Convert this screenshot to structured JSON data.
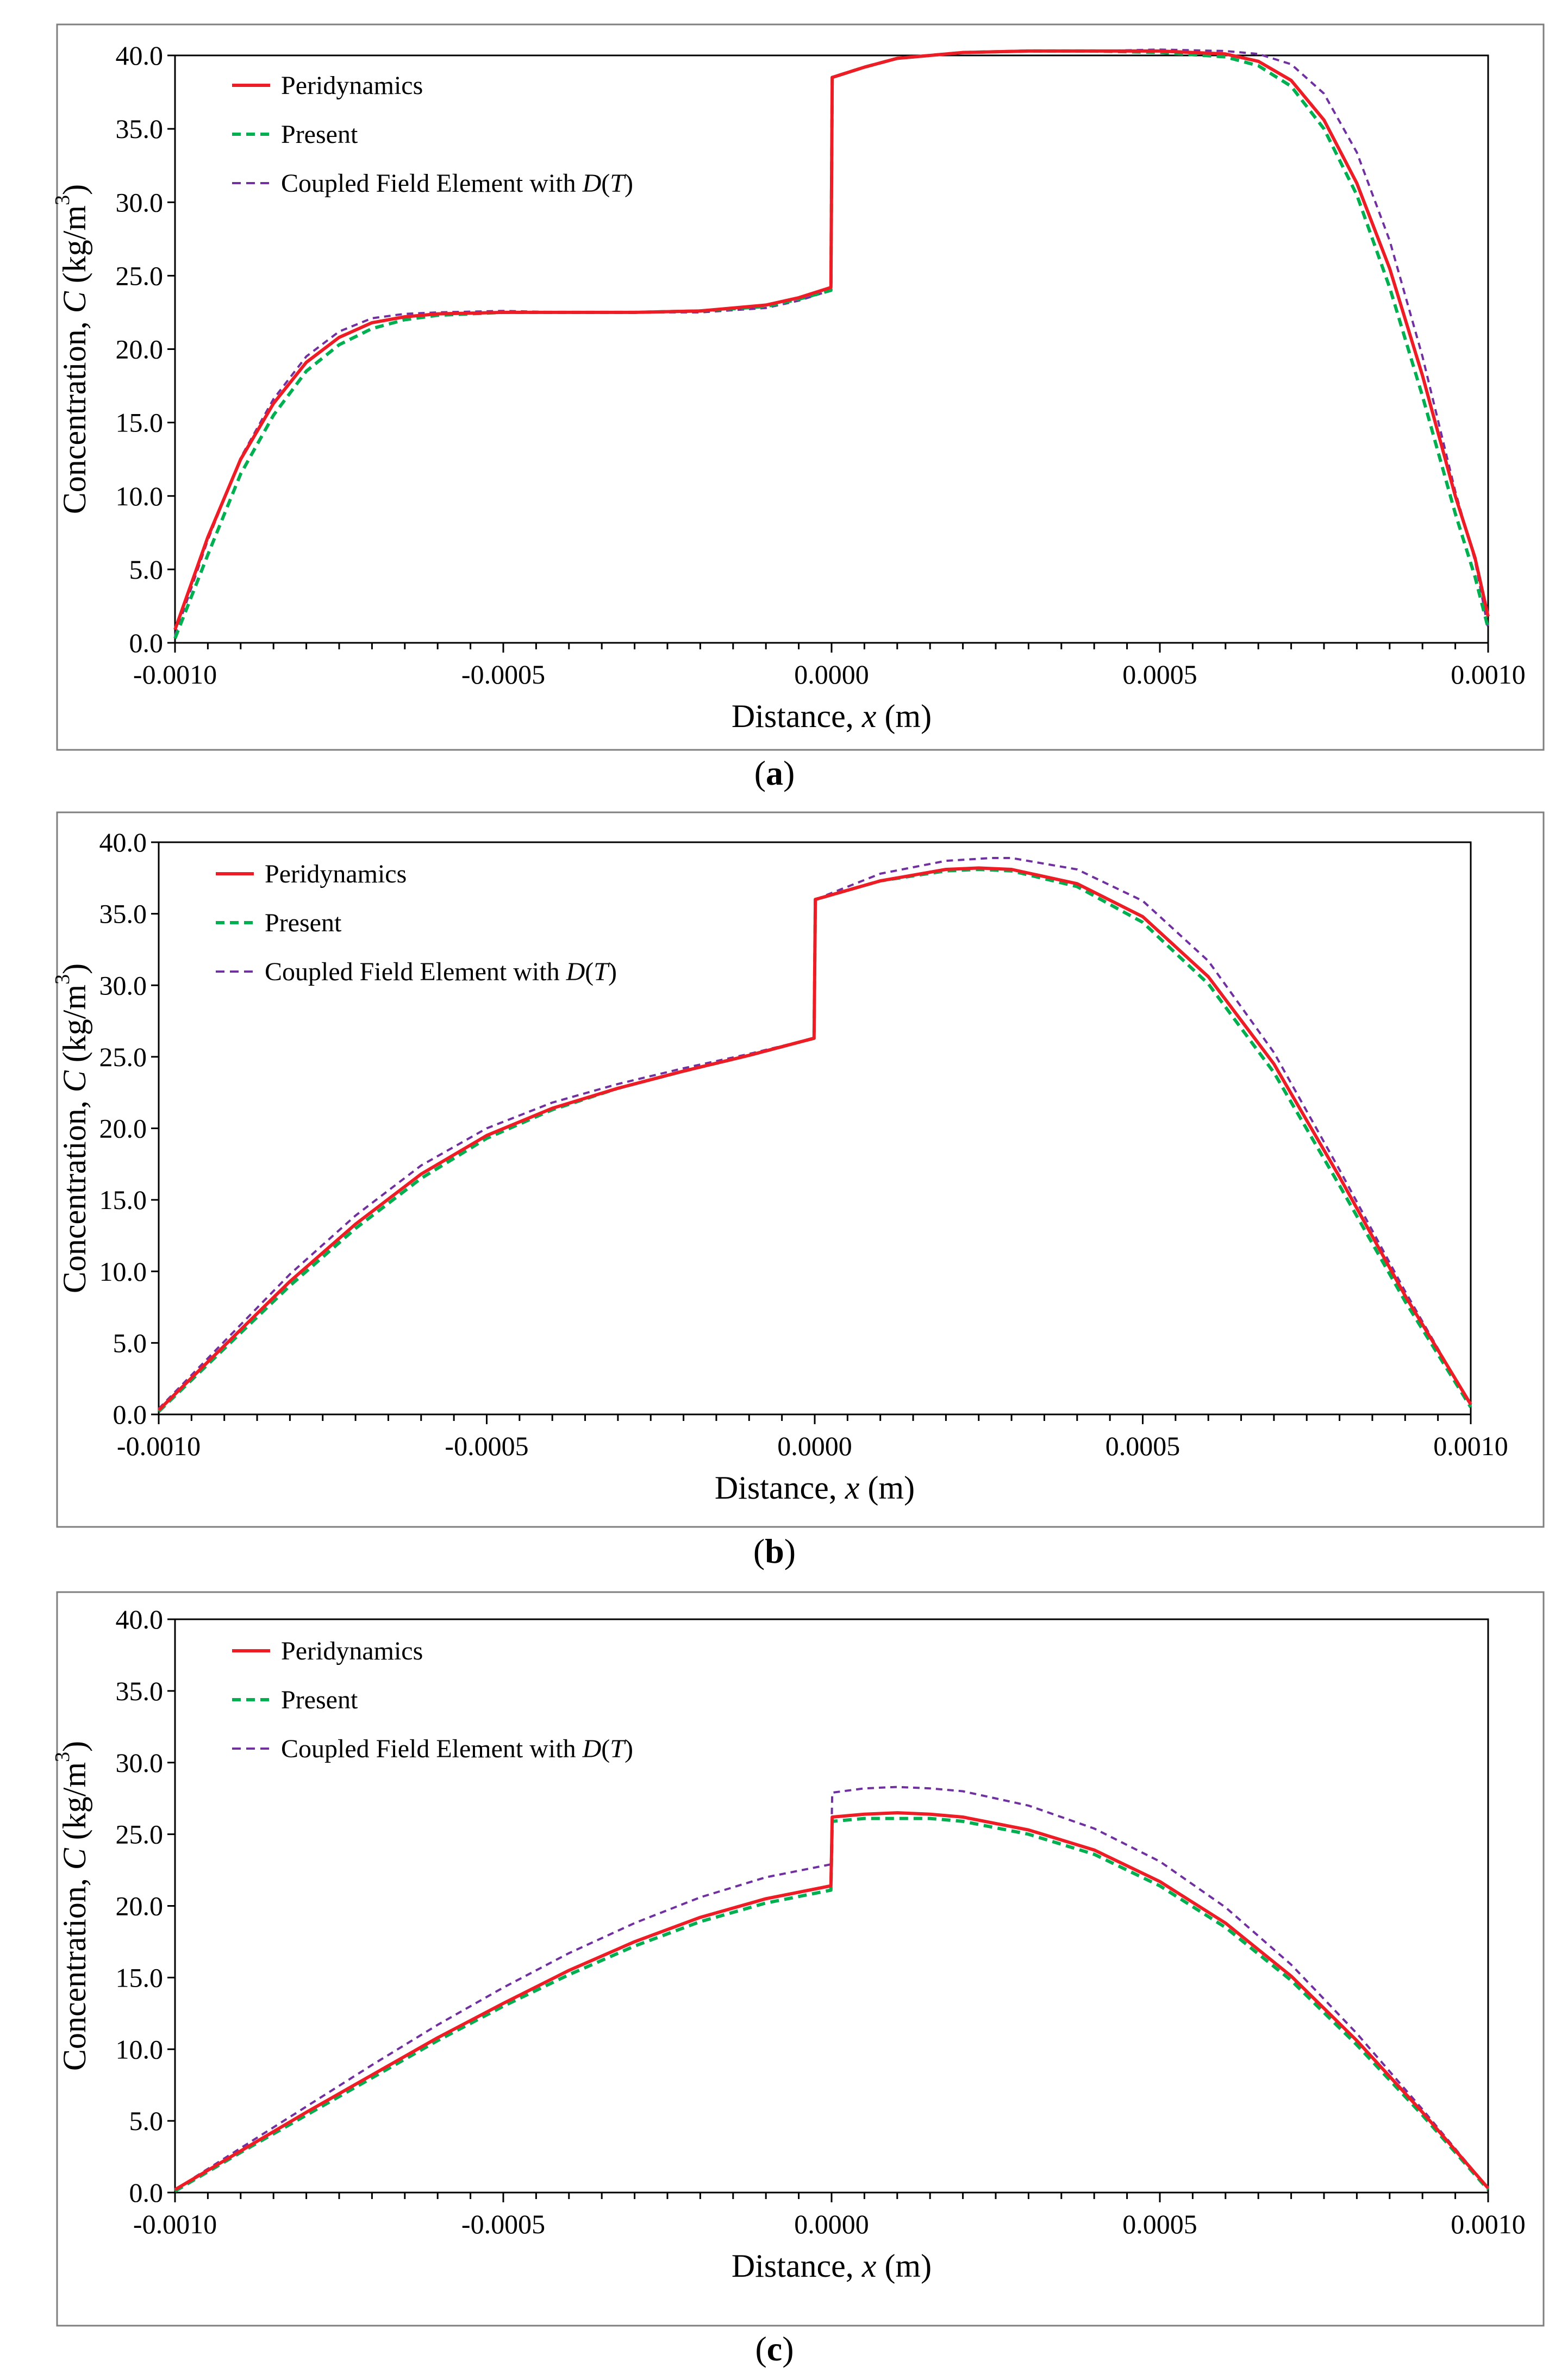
{
  "figure": {
    "panels": [
      {
        "label_open": "(",
        "label_letter": "a",
        "label_close": ")"
      },
      {
        "label_open": "(",
        "label_letter": "b",
        "label_close": ")"
      },
      {
        "label_open": "(",
        "label_letter": "c",
        "label_close": ")"
      }
    ]
  },
  "colors": {
    "peridynamics": "#ee1c25",
    "present": "#00b050",
    "coupled": "#7030a0",
    "axis": "#000000",
    "frame": "#7f7f7f"
  },
  "chart_data": [
    {
      "type": "line",
      "panel": "a",
      "xlabel": "Distance, x (m)",
      "ylabel": "Concentration, C (kg/m3)",
      "xlim": [
        -0.001,
        0.001
      ],
      "ylim": [
        0,
        40
      ],
      "xticks": [
        "-0.0010",
        "-0.0005",
        "0.0000",
        "0.0005",
        "0.0010"
      ],
      "yticks": [
        "0.0",
        "5.0",
        "10.0",
        "15.0",
        "20.0",
        "25.0",
        "30.0",
        "35.0",
        "40.0"
      ],
      "legend_position": "top-left",
      "series": [
        {
          "name": "Peridynamics",
          "style": "solid",
          "color_key": "peridynamics",
          "x": [
            -0.001,
            -0.00095,
            -0.0009,
            -0.00085,
            -0.0008,
            -0.00075,
            -0.0007,
            -0.00065,
            -0.0006,
            -0.0005,
            -0.0004,
            -0.0003,
            -0.0002,
            -0.0001,
            -5e-05,
            -1e-06,
            1e-06,
            5e-05,
            0.0001,
            0.0002,
            0.0003,
            0.0004,
            0.0005,
            0.0006,
            0.00065,
            0.0007,
            0.00075,
            0.0008,
            0.00085,
            0.0009,
            0.00095,
            0.00098,
            0.001
          ],
          "y": [
            0.9,
            7.2,
            12.5,
            16.3,
            19.1,
            20.8,
            21.8,
            22.2,
            22.4,
            22.5,
            22.5,
            22.5,
            22.6,
            23.0,
            23.5,
            24.2,
            38.5,
            39.2,
            39.8,
            40.2,
            40.3,
            40.3,
            40.3,
            40.1,
            39.6,
            38.3,
            35.6,
            31.3,
            25.5,
            18.2,
            10.0,
            5.8,
            1.8
          ]
        },
        {
          "name": "Present",
          "style": "dashed",
          "color_key": "present",
          "x": [
            -0.001,
            -0.00095,
            -0.0009,
            -0.00085,
            -0.0008,
            -0.00075,
            -0.0007,
            -0.00065,
            -0.0006,
            -0.0005,
            -0.0004,
            -0.0003,
            -0.0002,
            -0.0001,
            -5e-05,
            -1e-06,
            1e-06,
            5e-05,
            0.0001,
            0.0002,
            0.0003,
            0.0004,
            0.0005,
            0.0006,
            0.00065,
            0.0007,
            0.00075,
            0.0008,
            0.00085,
            0.0009,
            0.00095,
            0.00098,
            0.001
          ],
          "y": [
            0.3,
            6.0,
            11.5,
            15.5,
            18.5,
            20.3,
            21.4,
            22.0,
            22.3,
            22.5,
            22.5,
            22.5,
            22.6,
            22.9,
            23.4,
            24.0,
            38.5,
            39.2,
            39.8,
            40.2,
            40.3,
            40.3,
            40.2,
            39.9,
            39.3,
            37.9,
            35.0,
            30.5,
            24.2,
            16.8,
            8.8,
            4.5,
            1.0
          ]
        },
        {
          "name": "Coupled Field Element with D(T)",
          "style": "dashed",
          "color_key": "coupled",
          "x": [
            -0.001,
            -0.00095,
            -0.0009,
            -0.00085,
            -0.0008,
            -0.00075,
            -0.0007,
            -0.00065,
            -0.0006,
            -0.0005,
            -0.0004,
            -0.0003,
            -0.0002,
            -0.0001,
            -5e-05,
            -1e-06,
            1e-06,
            5e-05,
            0.0001,
            0.0002,
            0.0003,
            0.0004,
            0.0005,
            0.0006,
            0.00065,
            0.0007,
            0.00075,
            0.0008,
            0.00085,
            0.0009,
            0.00095,
            0.00098,
            0.001
          ],
          "y": [
            0.5,
            7.0,
            12.6,
            16.6,
            19.5,
            21.2,
            22.1,
            22.4,
            22.5,
            22.6,
            22.5,
            22.5,
            22.5,
            22.8,
            23.3,
            24.0,
            38.5,
            39.2,
            39.8,
            40.2,
            40.3,
            40.3,
            40.4,
            40.3,
            40.1,
            39.4,
            37.4,
            33.4,
            27.4,
            19.5,
            10.3,
            5.6,
            1.0
          ]
        }
      ]
    },
    {
      "type": "line",
      "panel": "b",
      "xlabel": "Distance, x (m)",
      "ylabel": "Concentration, C (kg/m3)",
      "xlim": [
        -0.001,
        0.001
      ],
      "ylim": [
        0,
        40
      ],
      "xticks": [
        "-0.0010",
        "-0.0005",
        "0.0000",
        "0.0005",
        "0.0010"
      ],
      "yticks": [
        "0.0",
        "5.0",
        "10.0",
        "15.0",
        "20.0",
        "25.0",
        "30.0",
        "35.0",
        "40.0"
      ],
      "legend_position": "top-left",
      "series": [
        {
          "name": "Peridynamics",
          "style": "solid",
          "color_key": "peridynamics",
          "x": [
            -0.001,
            -0.0009,
            -0.0008,
            -0.0007,
            -0.0006,
            -0.0005,
            -0.0004,
            -0.0003,
            -0.0002,
            -0.0001,
            -1e-06,
            1e-06,
            0.0001,
            0.0002,
            0.00025,
            0.0003,
            0.0004,
            0.0005,
            0.0006,
            0.0007,
            0.0008,
            0.0009,
            0.001
          ],
          "y": [
            0.3,
            4.8,
            9.3,
            13.3,
            16.8,
            19.5,
            21.4,
            22.8,
            24.0,
            25.1,
            26.3,
            36.0,
            37.3,
            38.1,
            38.2,
            38.1,
            37.1,
            34.8,
            30.6,
            24.5,
            16.6,
            8.3,
            0.7
          ]
        },
        {
          "name": "Present",
          "style": "dashed",
          "color_key": "present",
          "x": [
            -0.001,
            -0.0009,
            -0.0008,
            -0.0007,
            -0.0006,
            -0.0005,
            -0.0004,
            -0.0003,
            -0.0002,
            -0.0001,
            -1e-06,
            1e-06,
            0.0001,
            0.0002,
            0.00025,
            0.0003,
            0.0004,
            0.0005,
            0.0006,
            0.0007,
            0.0008,
            0.0009,
            0.001
          ],
          "y": [
            0.2,
            4.6,
            9.0,
            13.0,
            16.5,
            19.3,
            21.3,
            22.8,
            24.0,
            25.1,
            26.3,
            36.0,
            37.3,
            38.0,
            38.1,
            38.0,
            36.9,
            34.4,
            30.1,
            23.9,
            16.0,
            7.9,
            0.5
          ]
        },
        {
          "name": "Coupled Field Element with D(T)",
          "style": "dashed",
          "color_key": "coupled",
          "x": [
            -0.001,
            -0.0009,
            -0.0008,
            -0.0007,
            -0.0006,
            -0.0005,
            -0.0004,
            -0.0003,
            -0.0002,
            -0.0001,
            -1e-06,
            1e-06,
            0.0001,
            0.0002,
            0.00027,
            0.0003,
            0.0004,
            0.0005,
            0.0006,
            0.0007,
            0.0008,
            0.0009,
            0.001
          ],
          "y": [
            0.4,
            5.1,
            9.8,
            13.9,
            17.4,
            20.0,
            21.8,
            23.1,
            24.2,
            25.2,
            26.3,
            36.0,
            37.8,
            38.7,
            38.9,
            38.9,
            38.1,
            35.9,
            31.7,
            25.3,
            17.1,
            8.6,
            0.6
          ]
        }
      ]
    },
    {
      "type": "line",
      "panel": "c",
      "xlabel": "Distance, x (m)",
      "ylabel": "Concentration, C (kg/m3)",
      "xlim": [
        -0.001,
        0.001
      ],
      "ylim": [
        0,
        40
      ],
      "xticks": [
        "-0.0010",
        "-0.0005",
        "0.0000",
        "0.0005",
        "0.0010"
      ],
      "yticks": [
        "0.0",
        "5.0",
        "10.0",
        "15.0",
        "20.0",
        "25.0",
        "30.0",
        "35.0",
        "40.0"
      ],
      "legend_position": "top-left",
      "series": [
        {
          "name": "Peridynamics",
          "style": "solid",
          "color_key": "peridynamics",
          "x": [
            -0.001,
            -0.0009,
            -0.0008,
            -0.0007,
            -0.0006,
            -0.0005,
            -0.0004,
            -0.0003,
            -0.0002,
            -0.0001,
            -1e-06,
            1e-06,
            5e-05,
            0.0001,
            0.00015,
            0.0002,
            0.0003,
            0.0004,
            0.0005,
            0.0006,
            0.0007,
            0.0008,
            0.0009,
            0.001
          ],
          "y": [
            0.2,
            2.9,
            5.6,
            8.2,
            10.8,
            13.2,
            15.5,
            17.5,
            19.2,
            20.5,
            21.4,
            26.2,
            26.4,
            26.5,
            26.4,
            26.2,
            25.3,
            23.9,
            21.7,
            18.8,
            15.1,
            10.6,
            5.6,
            0.3
          ]
        },
        {
          "name": "Present",
          "style": "dashed",
          "color_key": "present",
          "x": [
            -0.001,
            -0.0009,
            -0.0008,
            -0.0007,
            -0.0006,
            -0.0005,
            -0.0004,
            -0.0003,
            -0.0002,
            -0.0001,
            -1e-06,
            1e-06,
            5e-05,
            0.0001,
            0.00015,
            0.0002,
            0.0003,
            0.0004,
            0.0005,
            0.0006,
            0.0007,
            0.0008,
            0.0009,
            0.001
          ],
          "y": [
            0.1,
            2.8,
            5.4,
            8.0,
            10.6,
            13.0,
            15.2,
            17.2,
            18.9,
            20.2,
            21.1,
            25.9,
            26.1,
            26.1,
            26.1,
            25.9,
            25.0,
            23.6,
            21.4,
            18.5,
            14.8,
            10.3,
            5.4,
            0.2
          ]
        },
        {
          "name": "Coupled Field Element with D(T)",
          "style": "dashed",
          "color_key": "coupled",
          "x": [
            -0.001,
            -0.0009,
            -0.0008,
            -0.0007,
            -0.0006,
            -0.0005,
            -0.0004,
            -0.0003,
            -0.0002,
            -0.0001,
            -1e-06,
            1e-06,
            5e-05,
            0.0001,
            0.00015,
            0.0002,
            0.0003,
            0.0004,
            0.0005,
            0.0006,
            0.0007,
            0.0008,
            0.0009,
            0.001
          ],
          "y": [
            0.2,
            3.1,
            6.0,
            8.9,
            11.7,
            14.3,
            16.7,
            18.8,
            20.6,
            22.0,
            22.9,
            27.9,
            28.2,
            28.3,
            28.2,
            28.0,
            27.0,
            25.4,
            23.1,
            19.9,
            15.9,
            11.1,
            5.8,
            0.3
          ]
        }
      ]
    }
  ]
}
